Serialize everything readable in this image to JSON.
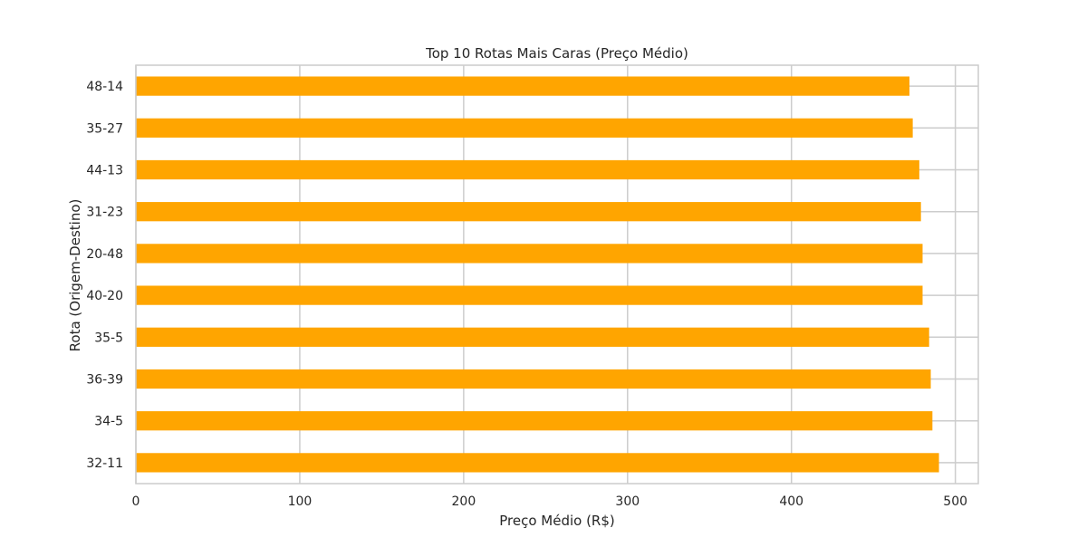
{
  "chart_data": {
    "type": "bar",
    "orientation": "horizontal",
    "title": "Top 10 Rotas Mais Caras (Preço Médio)",
    "xlabel": "Preço Médio (R$)",
    "ylabel": "Rota (Origem-Destino)",
    "categories": [
      "48-14",
      "35-27",
      "44-13",
      "31-23",
      "20-48",
      "40-20",
      "35-5",
      "36-39",
      "34-5",
      "32-11"
    ],
    "values": [
      472,
      474,
      478,
      479,
      480,
      480,
      484,
      485,
      486,
      490
    ],
    "xlim": [
      0,
      514
    ],
    "xticks": [
      0,
      100,
      200,
      300,
      400,
      500
    ],
    "grid": true,
    "colors": {
      "bar": "#FFA500",
      "grid": "#cccccc",
      "frame": "#cccccc",
      "text": "#262626"
    }
  }
}
